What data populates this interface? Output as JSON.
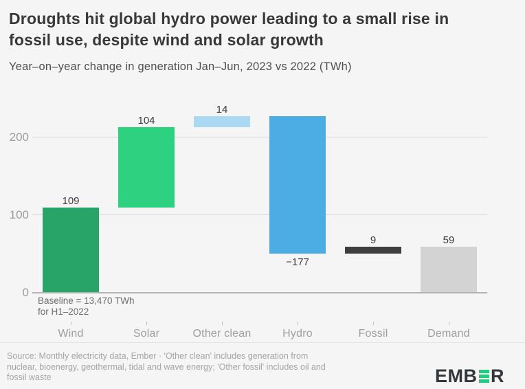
{
  "header": {
    "title_lines": [
      "Droughts hit global hydro power leading to a small rise in",
      "fossil use, despite wind and solar growth"
    ],
    "subtitle": "Year–on–year change in generation Jan–Jun, 2023 vs 2022 (TWh)"
  },
  "chart_data": {
    "type": "bar",
    "variant": "waterfall",
    "title": "Droughts hit global hydro power leading to a small rise in fossil use, despite wind and solar growth",
    "subtitle": "Year–on–year change in generation Jan–Jun, 2023 vs 2022 (TWh)",
    "units": "TWh",
    "categories": [
      "Wind",
      "Solar",
      "Other clean",
      "Hydro",
      "Fossil",
      "Demand"
    ],
    "values": [
      109,
      104,
      14,
      -177,
      9,
      59
    ],
    "value_labels": [
      "109",
      "104",
      "14",
      "−177",
      "9",
      "59"
    ],
    "bar_starts": [
      0,
      109,
      213,
      227,
      50,
      0
    ],
    "bar_ends": [
      109,
      213,
      227,
      50,
      59,
      59
    ],
    "bar_colors": [
      "#28a469",
      "#2ed17f",
      "#abd9f2",
      "#4bade3",
      "#3e3e3e",
      "#d3d3d3"
    ],
    "ylim": [
      0,
      230
    ],
    "yticks": [
      0,
      100,
      200
    ],
    "ytick_labels": [
      "0",
      "100",
      "200"
    ],
    "grid": true,
    "legend": "none",
    "annotation": "Baseline = 13,470 TWh for H1–2022"
  },
  "annotation": {
    "line1": "Baseline = 13,470 TWh",
    "line2": "for H1–2022"
  },
  "footer": {
    "source_lines": [
      "Source: Monthly electricity data, Ember · 'Other clean' includes generation from",
      "nuclear, bioenergy, geothermal, tidal and wave energy; 'Other fossil' includes oil and",
      "fossil waste"
    ],
    "logo": {
      "part1": "EMB",
      "part2": "R",
      "green": "#1fce7c",
      "dark": "#33373a"
    }
  }
}
